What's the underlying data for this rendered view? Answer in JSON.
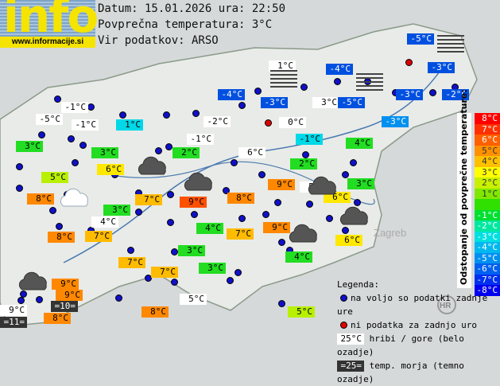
{
  "logo": {
    "text": "info",
    "url": "www.informacije.si"
  },
  "header": {
    "date_line": "Datum: 15.01.2026 ura: 22:50",
    "avg_line": "Povprečna temperatura: 3°C",
    "source_line": "Vir podatkov: ARSO"
  },
  "labels": [
    {
      "t": "-5°C",
      "s": "b"
    },
    {
      "t": "1°C",
      "s": "w"
    },
    {
      "t": "-4°C",
      "s": "b"
    },
    {
      "t": "-3°C",
      "s": "b"
    },
    {
      "t": "-4°C",
      "s": "b"
    },
    {
      "t": "-3°C",
      "s": "b"
    },
    {
      "t": "3°C",
      "s": "w"
    },
    {
      "t": "-5°C",
      "s": "b"
    },
    {
      "t": "-3°C",
      "s": "b"
    },
    {
      "t": "-2°C",
      "s": "b"
    },
    {
      "t": "-1°C",
      "s": "w"
    },
    {
      "t": "-5°C",
      "s": "w"
    },
    {
      "t": "-1°C",
      "s": "w"
    },
    {
      "t": "1°C",
      "s": "c"
    },
    {
      "t": "-2°C",
      "s": "w"
    },
    {
      "t": "0°C",
      "s": "w"
    },
    {
      "t": "-3°C",
      "s": "bl"
    },
    {
      "t": "3°C",
      "s": "g"
    },
    {
      "t": "-1°C",
      "s": "w"
    },
    {
      "t": "-1°C",
      "s": "c"
    },
    {
      "t": "4°C",
      "s": "g"
    },
    {
      "t": "3°C",
      "s": "g"
    },
    {
      "t": "2°C",
      "s": "g"
    },
    {
      "t": "6°C",
      "s": "w"
    },
    {
      "t": "2°C",
      "s": "g"
    },
    {
      "t": "6°C",
      "s": "y"
    },
    {
      "t": "5°C",
      "s": "yg"
    },
    {
      "t": "3°C",
      "s": "g"
    },
    {
      "t": "9°C",
      "s": "o"
    },
    {
      "t": "5°C",
      "s": "w"
    },
    {
      "t": "8°C",
      "s": "o"
    },
    {
      "t": "7°C",
      "s": "oy"
    },
    {
      "t": "9°C",
      "s": "r"
    },
    {
      "t": "8°C",
      "s": "o"
    },
    {
      "t": "6°C",
      "s": "y"
    },
    {
      "t": "3°C",
      "s": "g"
    },
    {
      "t": "4°C",
      "s": "w"
    },
    {
      "t": "4°C",
      "s": "g"
    },
    {
      "t": "7°C",
      "s": "oy"
    },
    {
      "t": "9°C",
      "s": "o"
    },
    {
      "t": "8°C",
      "s": "o"
    },
    {
      "t": "7°C",
      "s": "oy"
    },
    {
      "t": "6°C",
      "s": "y"
    },
    {
      "t": "3°C",
      "s": "g"
    },
    {
      "t": "4°C",
      "s": "g"
    },
    {
      "t": "7°C",
      "s": "oy"
    },
    {
      "t": "3°C",
      "s": "g"
    },
    {
      "t": "7°C",
      "s": "oy"
    },
    {
      "t": "9°C",
      "s": "o"
    },
    {
      "t": "9°C",
      "s": "o"
    },
    {
      "t": "=10=",
      "s": "dk"
    },
    {
      "t": "9°C",
      "s": "w"
    },
    {
      "t": "=11=",
      "s": "dk"
    },
    {
      "t": "8°C",
      "s": "o"
    },
    {
      "t": "8°C",
      "s": "o"
    },
    {
      "t": "5°C",
      "s": "w"
    },
    {
      "t": "5°C",
      "s": "yg"
    }
  ],
  "map_places": [
    "Zagreb",
    "HR"
  ],
  "scale": {
    "title": "Odstopanje od povprečne temperature:",
    "rows": [
      {
        "t": "8°C",
        "c": "#ff0000"
      },
      {
        "t": "7°C",
        "c": "#ff3000"
      },
      {
        "t": "6°C",
        "c": "#ff6000"
      },
      {
        "t": "5°C",
        "c": "#ff9000"
      },
      {
        "t": "4°C",
        "c": "#ffc000"
      },
      {
        "t": "3°C",
        "c": "#ffff00"
      },
      {
        "t": "2°C",
        "c": "#c8f000"
      },
      {
        "t": "1°C",
        "c": "#80e800"
      },
      {
        "t": "",
        "c": "#30e000"
      },
      {
        "t": "-1°C",
        "c": "#00e030"
      },
      {
        "t": "-2°C",
        "c": "#00e8a0"
      },
      {
        "t": "-3°C",
        "c": "#00e0e0"
      },
      {
        "t": "-4°C",
        "c": "#00b8f0"
      },
      {
        "t": "-5°C",
        "c": "#0090f0"
      },
      {
        "t": "-6°C",
        "c": "#0060f0"
      },
      {
        "t": "-7°C",
        "c": "#0030f0"
      },
      {
        "t": "-8°C",
        "c": "#0000f0"
      }
    ]
  },
  "legend": {
    "title": "Legenda:",
    "blue_dot": "na voljo so podatki zadnje ure",
    "red_dot": "ni podatka za zadnjo uro",
    "white_sample": "25°C",
    "white_desc": "hribi / gore (belo ozadje)",
    "dark_sample": "=25=",
    "dark_desc": "temp. morja (temno ozadje)"
  },
  "icons": [
    "cloud-icon",
    "cloud-rain-icon",
    "fog-icon",
    "station-dot"
  ]
}
